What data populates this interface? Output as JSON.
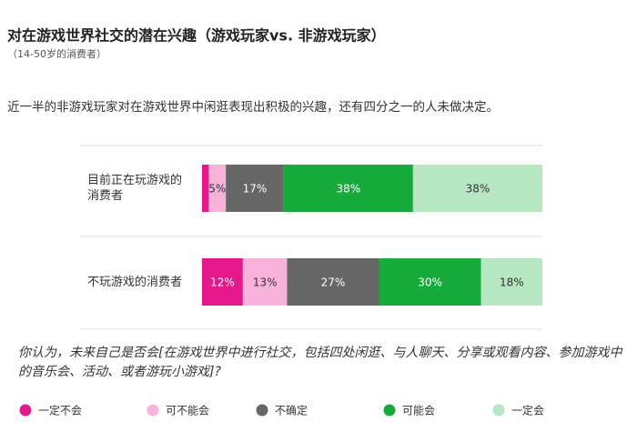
{
  "chart_data": {
    "type": "stacked_bar_horizontal",
    "title": "对在游戏世界社交的潜在兴趣（游戏玩家vs. 非游戏玩家）",
    "subtitle": "（14-50岁的消费者）",
    "description": "近一半的非游戏玩家对在游戏世界中闲逛表现出积极的兴趣，还有四分之一的人未做决定。",
    "categories": [
      "目前正在玩游戏的消费者",
      "不玩游戏的消费者"
    ],
    "xlim": [
      0,
      100
    ],
    "series": [
      {
        "name": "一定不会",
        "color": "#e6198c",
        "values": [
          2,
          12
        ],
        "value_labels": [
          null,
          "12%"
        ]
      },
      {
        "name": "可不能会",
        "color": "#f7b3da",
        "values": [
          5,
          13
        ],
        "value_labels": [
          "5%",
          "13%"
        ]
      },
      {
        "name": "不确定",
        "color": "#666666",
        "values": [
          17,
          27
        ],
        "value_labels": [
          "17%",
          "27%"
        ]
      },
      {
        "name": "可能会",
        "color": "#16ab3a",
        "values": [
          38,
          30
        ],
        "value_labels": [
          "38%",
          "30%"
        ]
      },
      {
        "name": "一定会",
        "color": "#b6e6c2",
        "values": [
          38,
          18
        ],
        "value_labels": [
          "38%",
          "18%"
        ]
      }
    ],
    "question": "你认为，未来自己是否会[在游戏世界中进行社交，包括四处闲逛、与人聊天、分享或观看内容、参加游戏中的音乐会、活动、或者游玩小游戏]?"
  }
}
